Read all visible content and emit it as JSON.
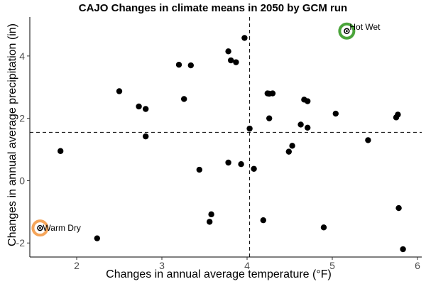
{
  "chart_data": {
    "type": "scatter",
    "title": "CAJO Changes in climate means in 2050 by GCM run",
    "xlabel": "Changes in annual average temperature (°F)",
    "ylabel": "Changes in annual average precipitation (in)",
    "xlim": [
      1.45,
      6.05
    ],
    "ylim": [
      -2.45,
      5.25
    ],
    "xticks": [
      2,
      3,
      4,
      5,
      6
    ],
    "yticks": [
      -2,
      0,
      2,
      4
    ],
    "grid": false,
    "point_color": "#000000",
    "reference_lines": {
      "vertical_x": 4.03,
      "horizontal_y": 1.55
    },
    "points": [
      {
        "x": 1.57,
        "y": -1.52
      },
      {
        "x": 1.81,
        "y": 0.95
      },
      {
        "x": 2.24,
        "y": -1.85
      },
      {
        "x": 2.5,
        "y": 2.87
      },
      {
        "x": 2.73,
        "y": 2.38
      },
      {
        "x": 2.81,
        "y": 2.3
      },
      {
        "x": 2.81,
        "y": 1.42
      },
      {
        "x": 3.2,
        "y": 3.72
      },
      {
        "x": 3.26,
        "y": 2.62
      },
      {
        "x": 3.34,
        "y": 3.7
      },
      {
        "x": 3.44,
        "y": 0.35
      },
      {
        "x": 3.56,
        "y": -1.32
      },
      {
        "x": 3.58,
        "y": -1.08
      },
      {
        "x": 3.78,
        "y": 4.15
      },
      {
        "x": 3.78,
        "y": 0.58
      },
      {
        "x": 3.81,
        "y": 3.86
      },
      {
        "x": 3.87,
        "y": 3.8
      },
      {
        "x": 3.93,
        "y": 0.53
      },
      {
        "x": 3.97,
        "y": 4.58
      },
      {
        "x": 4.03,
        "y": 1.67
      },
      {
        "x": 4.08,
        "y": 0.38
      },
      {
        "x": 4.19,
        "y": -1.27
      },
      {
        "x": 4.24,
        "y": 2.8
      },
      {
        "x": 4.26,
        "y": 2.79
      },
      {
        "x": 4.26,
        "y": 2.0
      },
      {
        "x": 4.3,
        "y": 2.8
      },
      {
        "x": 4.49,
        "y": 0.93
      },
      {
        "x": 4.53,
        "y": 1.12
      },
      {
        "x": 4.63,
        "y": 1.8
      },
      {
        "x": 4.67,
        "y": 2.6
      },
      {
        "x": 4.71,
        "y": 2.55
      },
      {
        "x": 4.71,
        "y": 1.7
      },
      {
        "x": 4.9,
        "y": -1.5
      },
      {
        "x": 5.04,
        "y": 2.15
      },
      {
        "x": 5.17,
        "y": 4.8
      },
      {
        "x": 5.42,
        "y": 1.3
      },
      {
        "x": 5.75,
        "y": 2.03
      },
      {
        "x": 5.77,
        "y": 2.12
      },
      {
        "x": 5.78,
        "y": -0.88
      },
      {
        "x": 5.83,
        "y": -2.2
      }
    ],
    "highlights": [
      {
        "label": "Hot Wet",
        "x": 5.17,
        "y": 4.8,
        "color": "#4aa43a"
      },
      {
        "label": "Warm Dry",
        "x": 1.57,
        "y": -1.52,
        "color": "#f5a55a"
      }
    ]
  }
}
